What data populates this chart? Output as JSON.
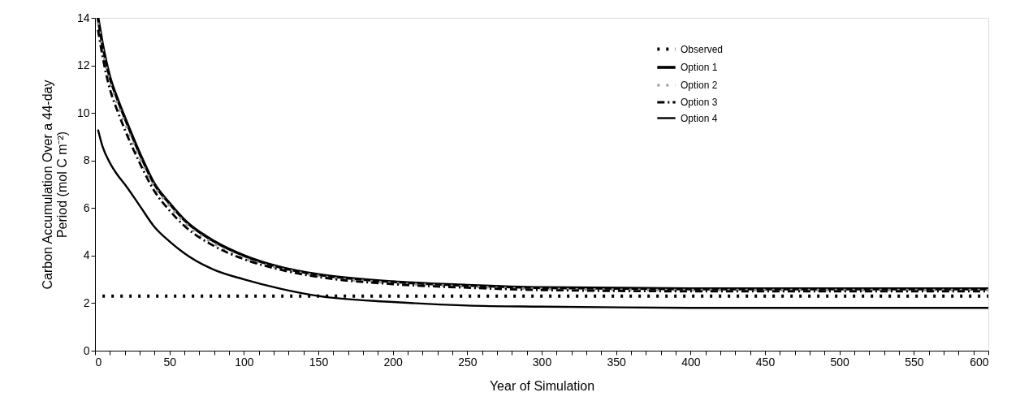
{
  "chart_data": {
    "type": "line",
    "xlabel": "Year of Simulation",
    "ylabel": "Carbon Accumulation Over a 44-day Period (mol C m⁻²)",
    "x": [
      2,
      5,
      10,
      15,
      20,
      30,
      40,
      50,
      60,
      80,
      100,
      125,
      150,
      200,
      250,
      300,
      400,
      500,
      600
    ],
    "series": [
      {
        "name": "Observed",
        "color": "#000000",
        "line_style": "dotted",
        "x": [
          5,
          600
        ],
        "values": [
          2.3,
          2.3
        ]
      },
      {
        "name": "Option 1",
        "color": "#000000",
        "line_style": "solid",
        "values": [
          14,
          12.9,
          11.5,
          10.6,
          9.8,
          8.3,
          7.0,
          6.2,
          5.5,
          4.6,
          4.0,
          3.5,
          3.2,
          2.9,
          2.75,
          2.65,
          2.6,
          2.6,
          2.6
        ]
      },
      {
        "name": "Option 2",
        "color": "#999999",
        "line_style": "dotted",
        "values": [
          13.8,
          12.7,
          11.3,
          10.4,
          9.6,
          8.1,
          6.9,
          6.1,
          5.4,
          4.5,
          3.9,
          3.45,
          3.15,
          2.85,
          2.7,
          2.6,
          2.55,
          2.55,
          2.55
        ]
      },
      {
        "name": "Option 3",
        "color": "#000000",
        "line_style": "dashed",
        "values": [
          13.5,
          12.4,
          11.0,
          10.1,
          9.3,
          7.9,
          6.7,
          5.9,
          5.25,
          4.4,
          3.85,
          3.4,
          3.1,
          2.8,
          2.65,
          2.55,
          2.5,
          2.5,
          2.5
        ]
      },
      {
        "name": "Option 4",
        "color": "#000000",
        "line_style": "solid",
        "values": [
          9.3,
          8.6,
          7.9,
          7.4,
          7.0,
          6.1,
          5.2,
          4.6,
          4.1,
          3.4,
          3.0,
          2.6,
          2.3,
          2.05,
          1.9,
          1.85,
          1.8,
          1.8,
          1.8
        ]
      }
    ],
    "xlim": [
      0,
      600
    ],
    "xticks": [
      0,
      {
        "value": 10,
        "label": null
      },
      {
        "value": 20,
        "label": null
      },
      {
        "value": 30,
        "label": null
      },
      {
        "value": 40,
        "label": null
      },
      50,
      {
        "value": 60,
        "label": null
      },
      {
        "value": 70,
        "label": null
      },
      {
        "value": 80,
        "label": null
      },
      {
        "value": 90,
        "label": null
      },
      100,
      {
        "value": 110,
        "label": null
      },
      {
        "value": 120,
        "label": null
      },
      {
        "value": 130,
        "label": null
      },
      {
        "value": 140,
        "label": null
      },
      150,
      {
        "value": 160,
        "label": null
      },
      {
        "value": 170,
        "label": null
      },
      {
        "value": 180,
        "label": null
      },
      {
        "value": 190,
        "label": null
      },
      200,
      {
        "value": 210,
        "label": null
      },
      {
        "value": 220,
        "label": null
      },
      {
        "value": 230,
        "label": null
      },
      {
        "value": 240,
        "label": null
      },
      250,
      {
        "value": 260,
        "label": null
      },
      {
        "value": 270,
        "label": null
      },
      {
        "value": 280,
        "label": null
      },
      {
        "value": 290,
        "label": null
      },
      300,
      {
        "value": 310,
        "label": null
      },
      {
        "value": 320,
        "label": null
      },
      {
        "value": 330,
        "label": null
      },
      {
        "value": 340,
        "label": null
      },
      350,
      {
        "value": 360,
        "label": null
      },
      {
        "value": 370,
        "label": null
      },
      {
        "value": 380,
        "label": null
      },
      {
        "value": 390,
        "label": null
      },
      400,
      {
        "value": 410,
        "label": null
      },
      {
        "value": 420,
        "label": null
      },
      {
        "value": 430,
        "label": null
      },
      {
        "value": 440,
        "label": null
      },
      450,
      {
        "value": 460,
        "label": null
      },
      {
        "value": 470,
        "label": null
      },
      {
        "value": 480,
        "label": null
      },
      {
        "value": 490,
        "label": null
      },
      500,
      {
        "value": 510,
        "label": null
      },
      {
        "value": 520,
        "label": null
      },
      {
        "value": 530,
        "label": null
      },
      {
        "value": 540,
        "label": null
      },
      550,
      {
        "value": 560,
        "label": null
      },
      {
        "value": 570,
        "label": null
      },
      {
        "value": 580,
        "label": null
      },
      {
        "value": 590,
        "label": null
      },
      600
    ],
    "ylim": [
      0,
      14
    ],
    "yticks": [
      0,
      2,
      4,
      6,
      8,
      10,
      12,
      14
    ],
    "grid": false,
    "legend": "top right"
  }
}
